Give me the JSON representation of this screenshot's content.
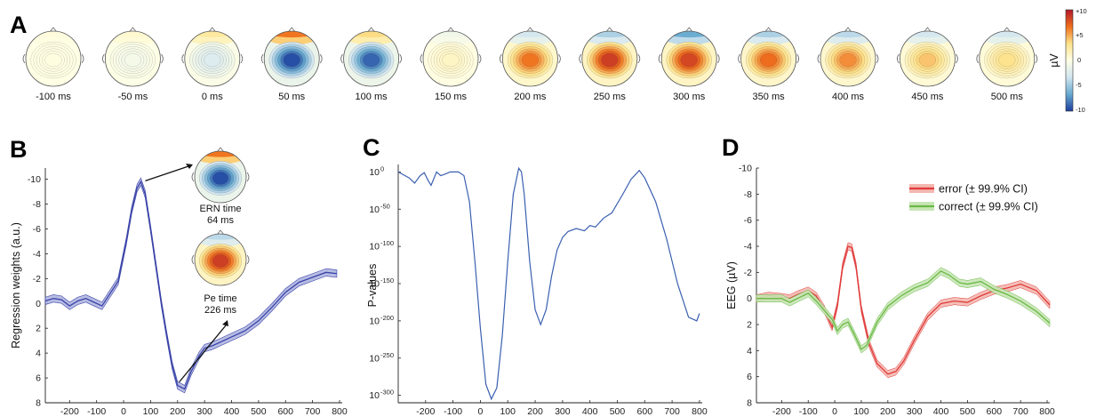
{
  "panel_letters": {
    "A": "A",
    "B": "B",
    "C": "C",
    "D": "D"
  },
  "colorbar": {
    "unit": "µV",
    "ticks": [
      "+10",
      "+5",
      "0",
      "-5",
      "-10"
    ],
    "colors": [
      "#b2182b",
      "#ef6f1c",
      "#fde28a",
      "#ffffe6",
      "#d1e5f0",
      "#67a9cf",
      "#1c3f9e"
    ]
  },
  "chart_data": [
    {
      "panel": "A",
      "type": "heatmap",
      "description_kind": "scalp topography series",
      "times": [
        "-100 ms",
        "-50 ms",
        "0 ms",
        "50 ms",
        "100 ms",
        "150 ms",
        "200 ms",
        "250 ms",
        "300 ms",
        "350 ms",
        "400 ms",
        "450 ms",
        "500 ms"
      ],
      "central_amplitude_uV": [
        0.2,
        -0.8,
        -2.5,
        -9.5,
        -8.8,
        1.2,
        6.5,
        8.5,
        8.2,
        6.8,
        5.8,
        4.2,
        3.2
      ],
      "frontal_amplitude_uV": [
        0.3,
        0.8,
        2.5,
        6.5,
        3.5,
        -1.0,
        -3.0,
        -4.5,
        -6.5,
        -4.5,
        -4.0,
        -3.0,
        -3.0
      ],
      "colorbar_range": [
        -10,
        10
      ]
    },
    {
      "panel": "B",
      "type": "line",
      "xlabel": "",
      "ylabel": "Regression weights (a.u.)",
      "xlim": [
        -290,
        810
      ],
      "ylim": [
        -10.9,
        8
      ],
      "y_inverted": true,
      "x_ticks": [
        "-200",
        "-100",
        "0",
        "100",
        "200",
        "300",
        "400",
        "500",
        "600",
        "700",
        "800"
      ],
      "y_ticks": [
        "-10",
        "-8",
        "-6",
        "-4",
        "-2",
        "0",
        "2",
        "4",
        "6",
        "8"
      ],
      "color": "#3a43a8",
      "series": [
        {
          "x": [
            -290,
            -260,
            -230,
            -200,
            -170,
            -140,
            -110,
            -80,
            -50,
            -20,
            10,
            30,
            50,
            64,
            80,
            100,
            120,
            140,
            160,
            180,
            200,
            226,
            250,
            280,
            300,
            330,
            360,
            400,
            450,
            500,
            550,
            600,
            650,
            700,
            750,
            790
          ],
          "y": [
            -0.2,
            -0.4,
            -0.3,
            0.2,
            -0.2,
            -0.4,
            -0.1,
            0.2,
            -0.8,
            -1.8,
            -5.0,
            -7.5,
            -9.3,
            -9.8,
            -8.8,
            -6.0,
            -3.0,
            0.0,
            2.6,
            5.0,
            6.6,
            6.9,
            5.5,
            4.2,
            3.6,
            3.4,
            3.1,
            2.7,
            2.2,
            1.4,
            0.3,
            -0.9,
            -1.7,
            -2.1,
            -2.5,
            -2.4
          ]
        }
      ],
      "band_halfwidth": 0.3,
      "annotations": [
        {
          "title": "ERN time",
          "value": "64 ms",
          "x": 64,
          "y": -9.8
        },
        {
          "title": "Pe time",
          "value": "226 ms",
          "x": 226,
          "y": 6.9
        }
      ]
    },
    {
      "panel": "C",
      "type": "line",
      "xlabel": "",
      "ylabel": "P-values",
      "xlim": [
        -300,
        810
      ],
      "ylim_log10": [
        -310,
        10
      ],
      "log_scale": true,
      "x_ticks": [
        "-200",
        "-100",
        "0",
        "100",
        "200",
        "300",
        "400",
        "500",
        "600",
        "700",
        "800"
      ],
      "y_ticks": [
        {
          "base": "10",
          "exp": "0",
          "log": 0
        },
        {
          "base": "10",
          "exp": "-50",
          "log": -50
        },
        {
          "base": "10",
          "exp": "-100",
          "log": -100
        },
        {
          "base": "10",
          "exp": "-150",
          "log": -150
        },
        {
          "base": "10",
          "exp": "-200",
          "log": -200
        },
        {
          "base": "10",
          "exp": "-250",
          "log": -250
        },
        {
          "base": "10",
          "exp": "-300",
          "log": -300
        }
      ],
      "color": "#3a5fb0",
      "series": [
        {
          "x": [
            -300,
            -260,
            -240,
            -220,
            -205,
            -190,
            -180,
            -160,
            -145,
            -130,
            -110,
            -80,
            -60,
            -40,
            -20,
            0,
            20,
            40,
            60,
            80,
            100,
            120,
            140,
            150,
            160,
            180,
            200,
            220,
            240,
            260,
            280,
            300,
            320,
            350,
            380,
            400,
            420,
            450,
            480,
            520,
            550,
            580,
            600,
            640,
            680,
            720,
            760,
            790,
            800
          ],
          "y": [
            0,
            -8,
            -15,
            -5,
            -1,
            -12,
            -18,
            0,
            -5,
            -3,
            0,
            0,
            -5,
            -40,
            -120,
            -210,
            -285,
            -305,
            -290,
            -220,
            -120,
            -30,
            5,
            0,
            -30,
            -120,
            -185,
            -205,
            -185,
            -140,
            -105,
            -88,
            -80,
            -76,
            -79,
            -72,
            -74,
            -62,
            -55,
            -30,
            -10,
            2,
            -8,
            -40,
            -90,
            -150,
            -195,
            -200,
            -190
          ]
        }
      ]
    },
    {
      "panel": "D",
      "type": "line",
      "xlabel": "",
      "ylabel": "EEG (µV)",
      "xlim": [
        -295,
        810
      ],
      "ylim": [
        -10,
        8
      ],
      "y_inverted": true,
      "x_ticks": [
        "-200",
        "-100",
        "0",
        "100",
        "200",
        "300",
        "400",
        "500",
        "600",
        "700",
        "800"
      ],
      "y_ticks": [
        "-10",
        "-8",
        "-6",
        "-4",
        "-2",
        "0",
        "2",
        "4",
        "6",
        "8"
      ],
      "legend": "top-right",
      "series": [
        {
          "name": "error (± 99.9% CI)",
          "color": "#e03a3a",
          "band_color": "#f3b8b0",
          "x": [
            -295,
            -250,
            -200,
            -170,
            -140,
            -100,
            -70,
            -40,
            -10,
            10,
            30,
            50,
            64,
            80,
            100,
            130,
            160,
            200,
            230,
            260,
            300,
            350,
            400,
            450,
            500,
            550,
            600,
            650,
            700,
            760,
            810
          ],
          "y": [
            0.0,
            -0.2,
            -0.1,
            0.0,
            -0.3,
            -0.6,
            -0.2,
            0.8,
            2.2,
            0.5,
            -2.5,
            -4.0,
            -3.9,
            -2.5,
            0.8,
            3.5,
            5.0,
            5.8,
            5.6,
            4.8,
            3.2,
            1.4,
            0.4,
            0.2,
            0.3,
            -0.2,
            -0.6,
            -0.8,
            -1.1,
            -0.6,
            0.5
          ]
        },
        {
          "name": "correct (± 99.9% CI)",
          "color": "#6ab944",
          "band_color": "#c8e6b6",
          "x": [
            -295,
            -250,
            -200,
            -170,
            -140,
            -100,
            -70,
            -40,
            -10,
            10,
            30,
            50,
            70,
            100,
            120,
            160,
            200,
            250,
            300,
            350,
            400,
            430,
            470,
            500,
            550,
            600,
            650,
            700,
            760,
            810
          ],
          "y": [
            0.0,
            0.0,
            0.0,
            0.3,
            0.0,
            -0.4,
            0.2,
            0.9,
            1.6,
            2.5,
            2.0,
            1.8,
            2.6,
            3.9,
            3.6,
            1.8,
            0.6,
            -0.2,
            -0.8,
            -1.2,
            -2.1,
            -1.8,
            -1.2,
            -1.1,
            -1.3,
            -0.7,
            -0.3,
            0.2,
            1.0,
            1.9
          ]
        }
      ]
    }
  ]
}
